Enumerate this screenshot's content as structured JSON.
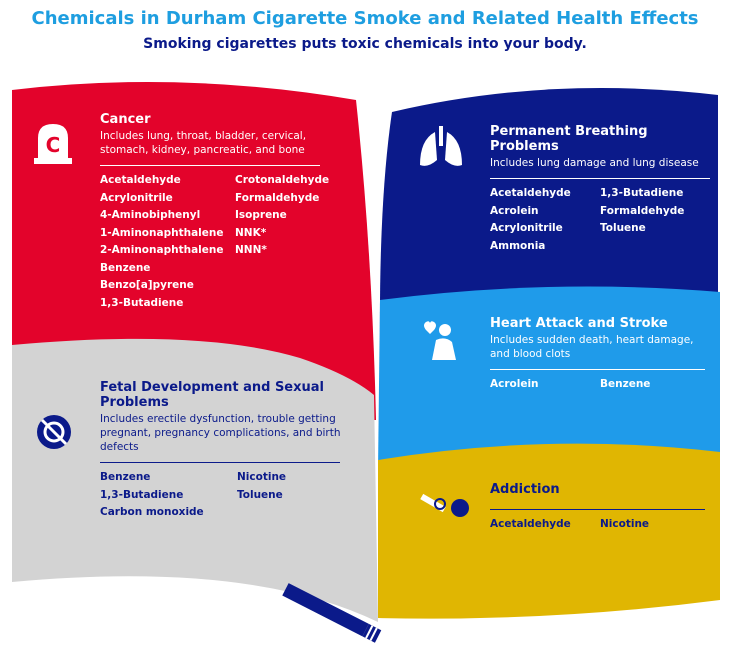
{
  "title": "Chemicals in Durham Cigarette Smoke and Related Health Effects",
  "subtitle": "Smoking cigarettes puts toxic chemicals into your body.",
  "sections": [
    {
      "heading": "Cancer",
      "description": "Includes lung, throat, bladder, cervical, stomach, kidney, pancreatic, and bone",
      "columns": [
        [
          "Acetaldehyde",
          "Acrylonitrile",
          "4-Aminobiphenyl",
          "1-Aminonaphthalene",
          "2-Aminonaphthalene",
          "Benzene",
          "Benzo[a]pyrene",
          "1,3-Butadiene"
        ],
        [
          "Crotonaldehyde",
          "Formaldehyde",
          "Isoprene",
          "NNK*",
          "NNN*"
        ]
      ]
    },
    {
      "heading": "Fetal Development and Sexual Problems",
      "description": "Includes erectile dysfunction, trouble getting pregnant, pregnancy complications, and birth defects",
      "columns": [
        [
          "Benzene",
          "1,3-Butadiene",
          "Carbon monoxide"
        ],
        [
          "Nicotine",
          "Toluene"
        ]
      ]
    },
    {
      "heading": "Permanent Breathing Problems",
      "description": "Includes lung damage and lung disease",
      "columns": [
        [
          "Acetaldehyde",
          "Acrolein",
          "Acrylonitrile",
          "Ammonia"
        ],
        [
          "1,3-Butadiene",
          "Formaldehyde",
          "Toluene"
        ]
      ]
    },
    {
      "heading": "Heart Attack and Stroke",
      "description": "Includes sudden death, heart damage, and blood clots",
      "columns": [
        [
          "Acrolein"
        ],
        [
          "Benzene"
        ]
      ]
    },
    {
      "heading": "Addiction",
      "columns": [
        [
          "Acetaldehyde"
        ],
        [
          "Nicotine"
        ]
      ]
    }
  ]
}
